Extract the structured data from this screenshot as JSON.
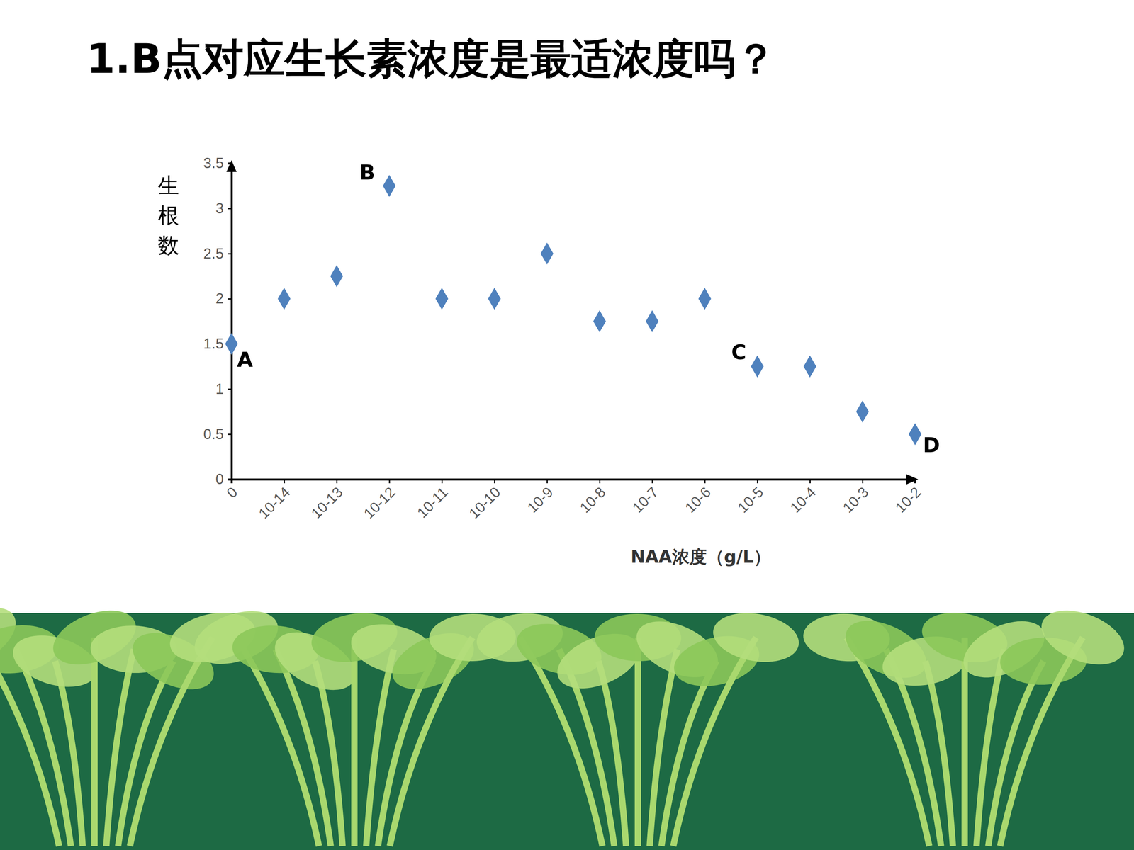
{
  "chart_data": {
    "type": "scatter",
    "title": "1.B点对应生长素浓度是最适浓度吗？",
    "x_label": "NAA浓度（g/L）",
    "y_label": "生根数",
    "categories": [
      "0",
      "10-14",
      "10-13",
      "10-12",
      "10-11",
      "10-10",
      "10-9",
      "10-8",
      "10-7",
      "10-6",
      "10-5",
      "10-4",
      "10-3",
      "10-2"
    ],
    "values": [
      1.5,
      2,
      2.25,
      3.25,
      2,
      2,
      2.5,
      1.75,
      1.75,
      2,
      1.25,
      1.25,
      0.75,
      0.5
    ],
    "color": "#4f81bd",
    "marker": "diamond",
    "ylim": [
      0,
      3.5
    ],
    "yticks": [
      0,
      0.5,
      1,
      1.5,
      2,
      2.5,
      3,
      3.5
    ],
    "grid": false,
    "annotations": [
      {
        "text": "A",
        "category": "0"
      },
      {
        "text": "B",
        "category": "10-12"
      },
      {
        "text": "C",
        "category": "10-5"
      },
      {
        "text": "D",
        "category": "10-2"
      }
    ]
  }
}
